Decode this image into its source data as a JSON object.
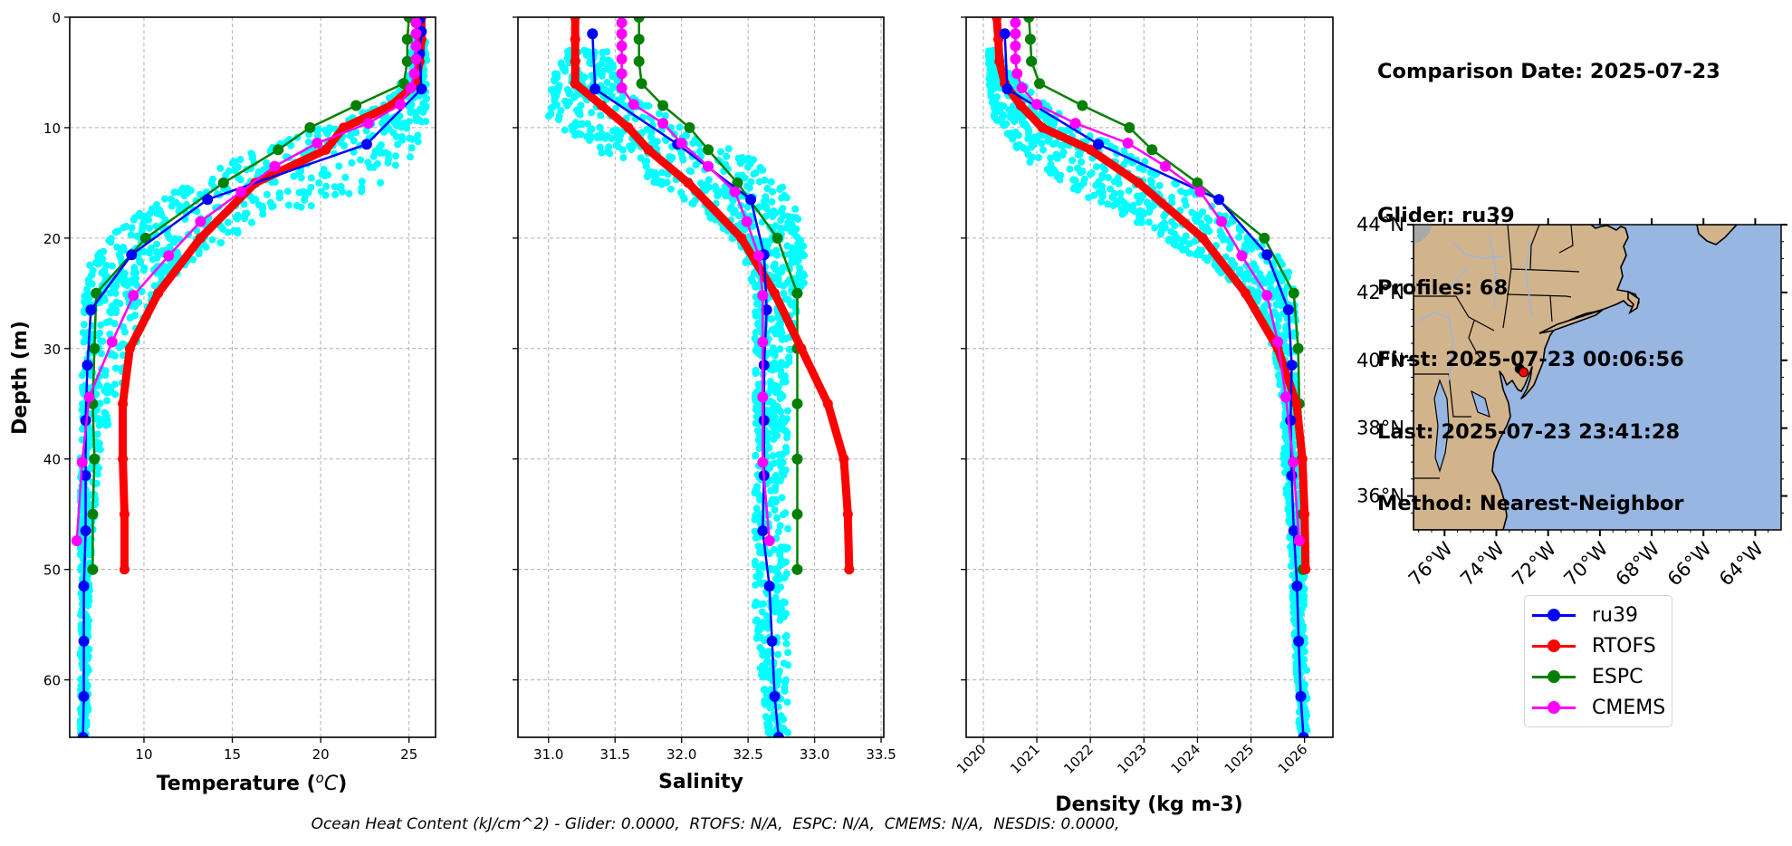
{
  "info": {
    "comparison_date": "Comparison Date: 2025-07-23",
    "glider": "Glider: ru39",
    "profiles": "Profiles: 68",
    "first": "First: 2025-07-23 00:06:56",
    "last": "Last: 2025-07-23 23:41:28",
    "method": "Method: Nearest-Neighbor"
  },
  "footer": "Ocean Heat Content (kJ/cm^2) - Glider: 0.0000,  RTOFS: N/A,  ESPC: N/A,  CMEMS: N/A,  NESDIS: 0.0000,",
  "legend": [
    {
      "label": "ru39",
      "color": "#0000ff"
    },
    {
      "label": "RTOFS",
      "color": "#ff0000"
    },
    {
      "label": "ESPC",
      "color": "#008000"
    },
    {
      "label": "CMEMS",
      "color": "#ff00ff"
    }
  ],
  "colors": {
    "glider_scatter": "#00ffff",
    "ru39": "#0000ff",
    "RTOFS": "#ff0000",
    "ESPC": "#008000",
    "CMEMS": "#ff00ff",
    "land": "#d2b48c",
    "ocean": "#97b6e1",
    "lakes_rivers": "#9cb6dc",
    "grid": "#b0b0b0"
  },
  "chart_data": [
    {
      "type": "line",
      "panel": "temperature",
      "xlabel": "Temperature (°C)",
      "ylabel": "Depth (m)",
      "xlim": [
        5.8,
        26.5
      ],
      "ylim": [
        65.2,
        0
      ],
      "xticks": [
        10,
        15,
        20,
        25
      ],
      "yticks": [
        0,
        10,
        20,
        30,
        40,
        50,
        60
      ],
      "grid": true,
      "scatter_envelope": {
        "name": "glider profiles",
        "depth": [
          2,
          5,
          8,
          10,
          12,
          14,
          16,
          18,
          20,
          22,
          24,
          26,
          30,
          35,
          40,
          45,
          50,
          55,
          60,
          65
        ],
        "min": [
          25.2,
          25.0,
          23.5,
          20.0,
          16.5,
          13.8,
          11.5,
          9.5,
          8.0,
          7.0,
          6.7,
          6.6,
          6.5,
          6.5,
          6.4,
          6.4,
          6.4,
          6.4,
          6.4,
          6.4
        ],
        "max": [
          26.0,
          26.0,
          26.0,
          26.0,
          25.5,
          25.0,
          22.0,
          18.0,
          15.0,
          13.0,
          11.5,
          10.5,
          9.5,
          8.5,
          7.5,
          7.2,
          7.0,
          6.9,
          6.9,
          6.8
        ]
      },
      "series": [
        {
          "name": "ru39",
          "depth": [
            0.2,
            1.3,
            3.3,
            6.5,
            11.5,
            16.5,
            21.5,
            26.5,
            31.5,
            36.5,
            41.5,
            46.5,
            51.5,
            56.5,
            61.5,
            65.2
          ],
          "values": [
            25.6,
            25.7,
            25.6,
            25.7,
            22.6,
            13.6,
            9.3,
            7.0,
            6.8,
            6.7,
            6.7,
            6.7,
            6.6,
            6.6,
            6.6,
            6.55
          ]
        },
        {
          "name": "RTOFS",
          "depth": [
            0,
            2,
            4,
            6,
            8,
            10,
            12,
            15,
            20,
            25,
            30,
            35,
            40,
            45,
            50
          ],
          "values": [
            25.7,
            25.7,
            25.6,
            25.4,
            24.0,
            21.3,
            20.3,
            16.3,
            13.2,
            10.8,
            9.2,
            8.8,
            8.8,
            8.9,
            8.9
          ]
        },
        {
          "name": "ESPC",
          "depth": [
            0,
            2,
            4,
            6,
            8,
            10,
            12,
            15,
            20,
            25,
            30,
            35,
            40,
            45,
            50
          ],
          "values": [
            25.0,
            24.9,
            24.9,
            24.7,
            22.0,
            19.4,
            17.6,
            14.5,
            10.1,
            7.3,
            7.2,
            7.1,
            7.2,
            7.1,
            7.1
          ]
        },
        {
          "name": "CMEMS",
          "depth": [
            0.5,
            1.5,
            2.6,
            3.8,
            5.1,
            6.4,
            7.9,
            9.6,
            11.4,
            13.5,
            15.8,
            18.5,
            21.6,
            25.2,
            29.4,
            34.4,
            40.3,
            47.4
          ],
          "values": [
            25.4,
            25.4,
            25.4,
            25.4,
            25.3,
            25.1,
            24.5,
            22.7,
            19.8,
            17.4,
            15.5,
            13.2,
            11.4,
            9.4,
            8.2,
            6.9,
            6.5,
            6.2
          ]
        }
      ]
    },
    {
      "type": "line",
      "panel": "salinity",
      "xlabel": "Salinity",
      "ylabel": "Depth (m)",
      "xlim": [
        30.77,
        33.52
      ],
      "ylim": [
        65.2,
        0
      ],
      "xticks": [
        31.0,
        31.5,
        32.0,
        32.5,
        33.0,
        33.5
      ],
      "xtick_labels": [
        "31.0",
        "31.5",
        "32.0",
        "32.5",
        "33.0",
        "33.5"
      ],
      "yticks": [
        0,
        10,
        20,
        30,
        40,
        50,
        60
      ],
      "grid": true,
      "scatter_envelope": {
        "name": "glider profiles",
        "depth": [
          3,
          5,
          7,
          9,
          11,
          13,
          15,
          17,
          19,
          21,
          23,
          25,
          28,
          32,
          36,
          40,
          45,
          50,
          55,
          60,
          65
        ],
        "min": [
          31.15,
          31.05,
          31.0,
          31.0,
          31.2,
          31.5,
          31.8,
          32.1,
          32.3,
          32.45,
          32.5,
          32.55,
          32.55,
          32.55,
          32.55,
          32.55,
          32.55,
          32.55,
          32.55,
          32.6,
          32.65
        ],
        "max": [
          31.45,
          31.5,
          31.6,
          31.9,
          32.2,
          32.6,
          32.75,
          32.85,
          32.9,
          32.92,
          32.95,
          32.9,
          32.85,
          32.8,
          32.8,
          32.8,
          32.8,
          32.8,
          32.8,
          32.8,
          32.8
        ]
      },
      "series": [
        {
          "name": "ru39",
          "depth": [
            1.5,
            6.5,
            11.5,
            16.5,
            21.5,
            26.5,
            31.5,
            36.5,
            41.5,
            46.5,
            51.5,
            56.5,
            61.5,
            65.2
          ],
          "values": [
            31.33,
            31.35,
            31.97,
            32.52,
            32.62,
            32.64,
            32.62,
            32.62,
            32.62,
            32.61,
            32.66,
            32.68,
            32.7,
            32.73
          ]
        },
        {
          "name": "RTOFS",
          "depth": [
            0,
            2,
            4,
            6,
            8,
            10,
            12,
            15,
            20,
            25,
            30,
            35,
            40,
            45,
            50
          ],
          "values": [
            31.2,
            31.2,
            31.2,
            31.2,
            31.4,
            31.6,
            31.75,
            32.05,
            32.45,
            32.7,
            32.9,
            33.1,
            33.22,
            33.25,
            33.26
          ]
        },
        {
          "name": "ESPC",
          "depth": [
            0,
            2,
            4,
            6,
            8,
            10,
            12,
            15,
            20,
            25,
            30,
            35,
            40,
            45,
            50
          ],
          "values": [
            31.68,
            31.68,
            31.68,
            31.7,
            31.86,
            32.06,
            32.2,
            32.42,
            32.72,
            32.87,
            32.87,
            32.87,
            32.87,
            32.87,
            32.87
          ]
        },
        {
          "name": "CMEMS",
          "depth": [
            0.5,
            1.5,
            2.6,
            3.8,
            5.1,
            6.4,
            7.9,
            9.6,
            11.4,
            13.5,
            15.8,
            18.5,
            21.6,
            25.2,
            29.4,
            34.4,
            40.3,
            47.4
          ],
          "values": [
            31.55,
            31.55,
            31.55,
            31.55,
            31.55,
            31.55,
            31.64,
            31.86,
            32.0,
            32.2,
            32.4,
            32.49,
            32.58,
            32.61,
            32.61,
            32.61,
            32.61,
            32.66
          ]
        }
      ]
    },
    {
      "type": "line",
      "panel": "density",
      "xlabel": "Density (kg m-3)",
      "ylabel": "Depth (m)",
      "xlim": [
        1019.68,
        1026.53
      ],
      "ylim": [
        65.2,
        0
      ],
      "xticks": [
        1020,
        1021,
        1022,
        1023,
        1024,
        1025,
        1026
      ],
      "yticks": [
        0,
        10,
        20,
        30,
        40,
        50,
        60
      ],
      "grid": true,
      "scatter_envelope": {
        "name": "glider profiles",
        "depth": [
          3,
          5,
          7,
          9,
          11,
          13,
          15,
          17,
          19,
          21,
          23,
          25,
          28,
          32,
          36,
          40,
          45,
          50,
          55,
          60,
          65
        ],
        "min": [
          1020.1,
          1020.1,
          1020.1,
          1020.2,
          1020.5,
          1020.8,
          1021.5,
          1022.2,
          1023.0,
          1023.7,
          1024.4,
          1024.9,
          1025.3,
          1025.5,
          1025.6,
          1025.6,
          1025.7,
          1025.75,
          1025.8,
          1025.85,
          1025.9
        ],
        "max": [
          1020.3,
          1020.5,
          1021.0,
          1021.5,
          1022.2,
          1023.0,
          1023.6,
          1024.3,
          1024.9,
          1025.4,
          1025.7,
          1025.85,
          1025.85,
          1025.85,
          1025.9,
          1025.9,
          1025.95,
          1026.0,
          1026.0,
          1026.05,
          1026.05
        ]
      },
      "series": [
        {
          "name": "ru39",
          "depth": [
            1.5,
            6.5,
            11.5,
            16.5,
            21.5,
            26.5,
            31.5,
            36.5,
            41.5,
            46.5,
            51.5,
            56.5,
            61.5,
            65.2
          ],
          "values": [
            1020.4,
            1020.45,
            1022.15,
            1024.4,
            1025.3,
            1025.7,
            1025.76,
            1025.74,
            1025.76,
            1025.8,
            1025.86,
            1025.89,
            1025.93,
            1025.98
          ]
        },
        {
          "name": "RTOFS",
          "depth": [
            0,
            2,
            4,
            6,
            8,
            10,
            12,
            15,
            20,
            25,
            30,
            35,
            40,
            45,
            50
          ],
          "values": [
            1020.25,
            1020.28,
            1020.3,
            1020.4,
            1020.7,
            1021.1,
            1022.0,
            1022.9,
            1024.1,
            1024.9,
            1025.5,
            1025.85,
            1025.96,
            1026.0,
            1026.02
          ]
        },
        {
          "name": "ESPC",
          "depth": [
            0,
            2,
            4,
            6,
            8,
            10,
            12,
            15,
            20,
            25,
            30,
            35,
            40,
            45,
            50
          ],
          "values": [
            1020.85,
            1020.88,
            1020.9,
            1021.05,
            1021.85,
            1022.73,
            1023.15,
            1024.0,
            1025.25,
            1025.8,
            1025.88,
            1025.9,
            1025.95,
            1025.96,
            1025.97
          ]
        },
        {
          "name": "CMEMS",
          "depth": [
            0.5,
            1.5,
            2.6,
            3.8,
            5.1,
            6.4,
            7.9,
            9.6,
            11.4,
            13.5,
            15.8,
            18.5,
            21.6,
            25.2,
            29.4,
            34.4,
            40.3,
            47.4
          ],
          "values": [
            1020.6,
            1020.6,
            1020.6,
            1020.6,
            1020.63,
            1020.72,
            1021.0,
            1021.72,
            1022.7,
            1023.4,
            1024.05,
            1024.45,
            1024.83,
            1025.3,
            1025.5,
            1025.65,
            1025.79,
            1025.9
          ]
        }
      ]
    },
    {
      "type": "map",
      "panel": "location",
      "lon_range": [
        -77.2,
        -63.0
      ],
      "lat_range": [
        35.0,
        44.0
      ],
      "xticks": [
        -76,
        -74,
        -72,
        -70,
        -68,
        -66,
        -64
      ],
      "xtick_labels": [
        "76°W",
        "74°W",
        "72°W",
        "70°W",
        "68°W",
        "66°W",
        "64°W"
      ],
      "yticks": [
        36,
        38,
        40,
        42,
        44
      ],
      "ytick_labels": [
        "36°N",
        "38°N",
        "40°N",
        "42°N",
        "44°N"
      ],
      "markers": [
        {
          "name": "glider-track",
          "lon": -73.1,
          "lat": 39.75,
          "color": "#000000"
        },
        {
          "name": "model-location",
          "lon": -72.95,
          "lat": 39.65,
          "color": "#ff0000"
        }
      ]
    }
  ]
}
